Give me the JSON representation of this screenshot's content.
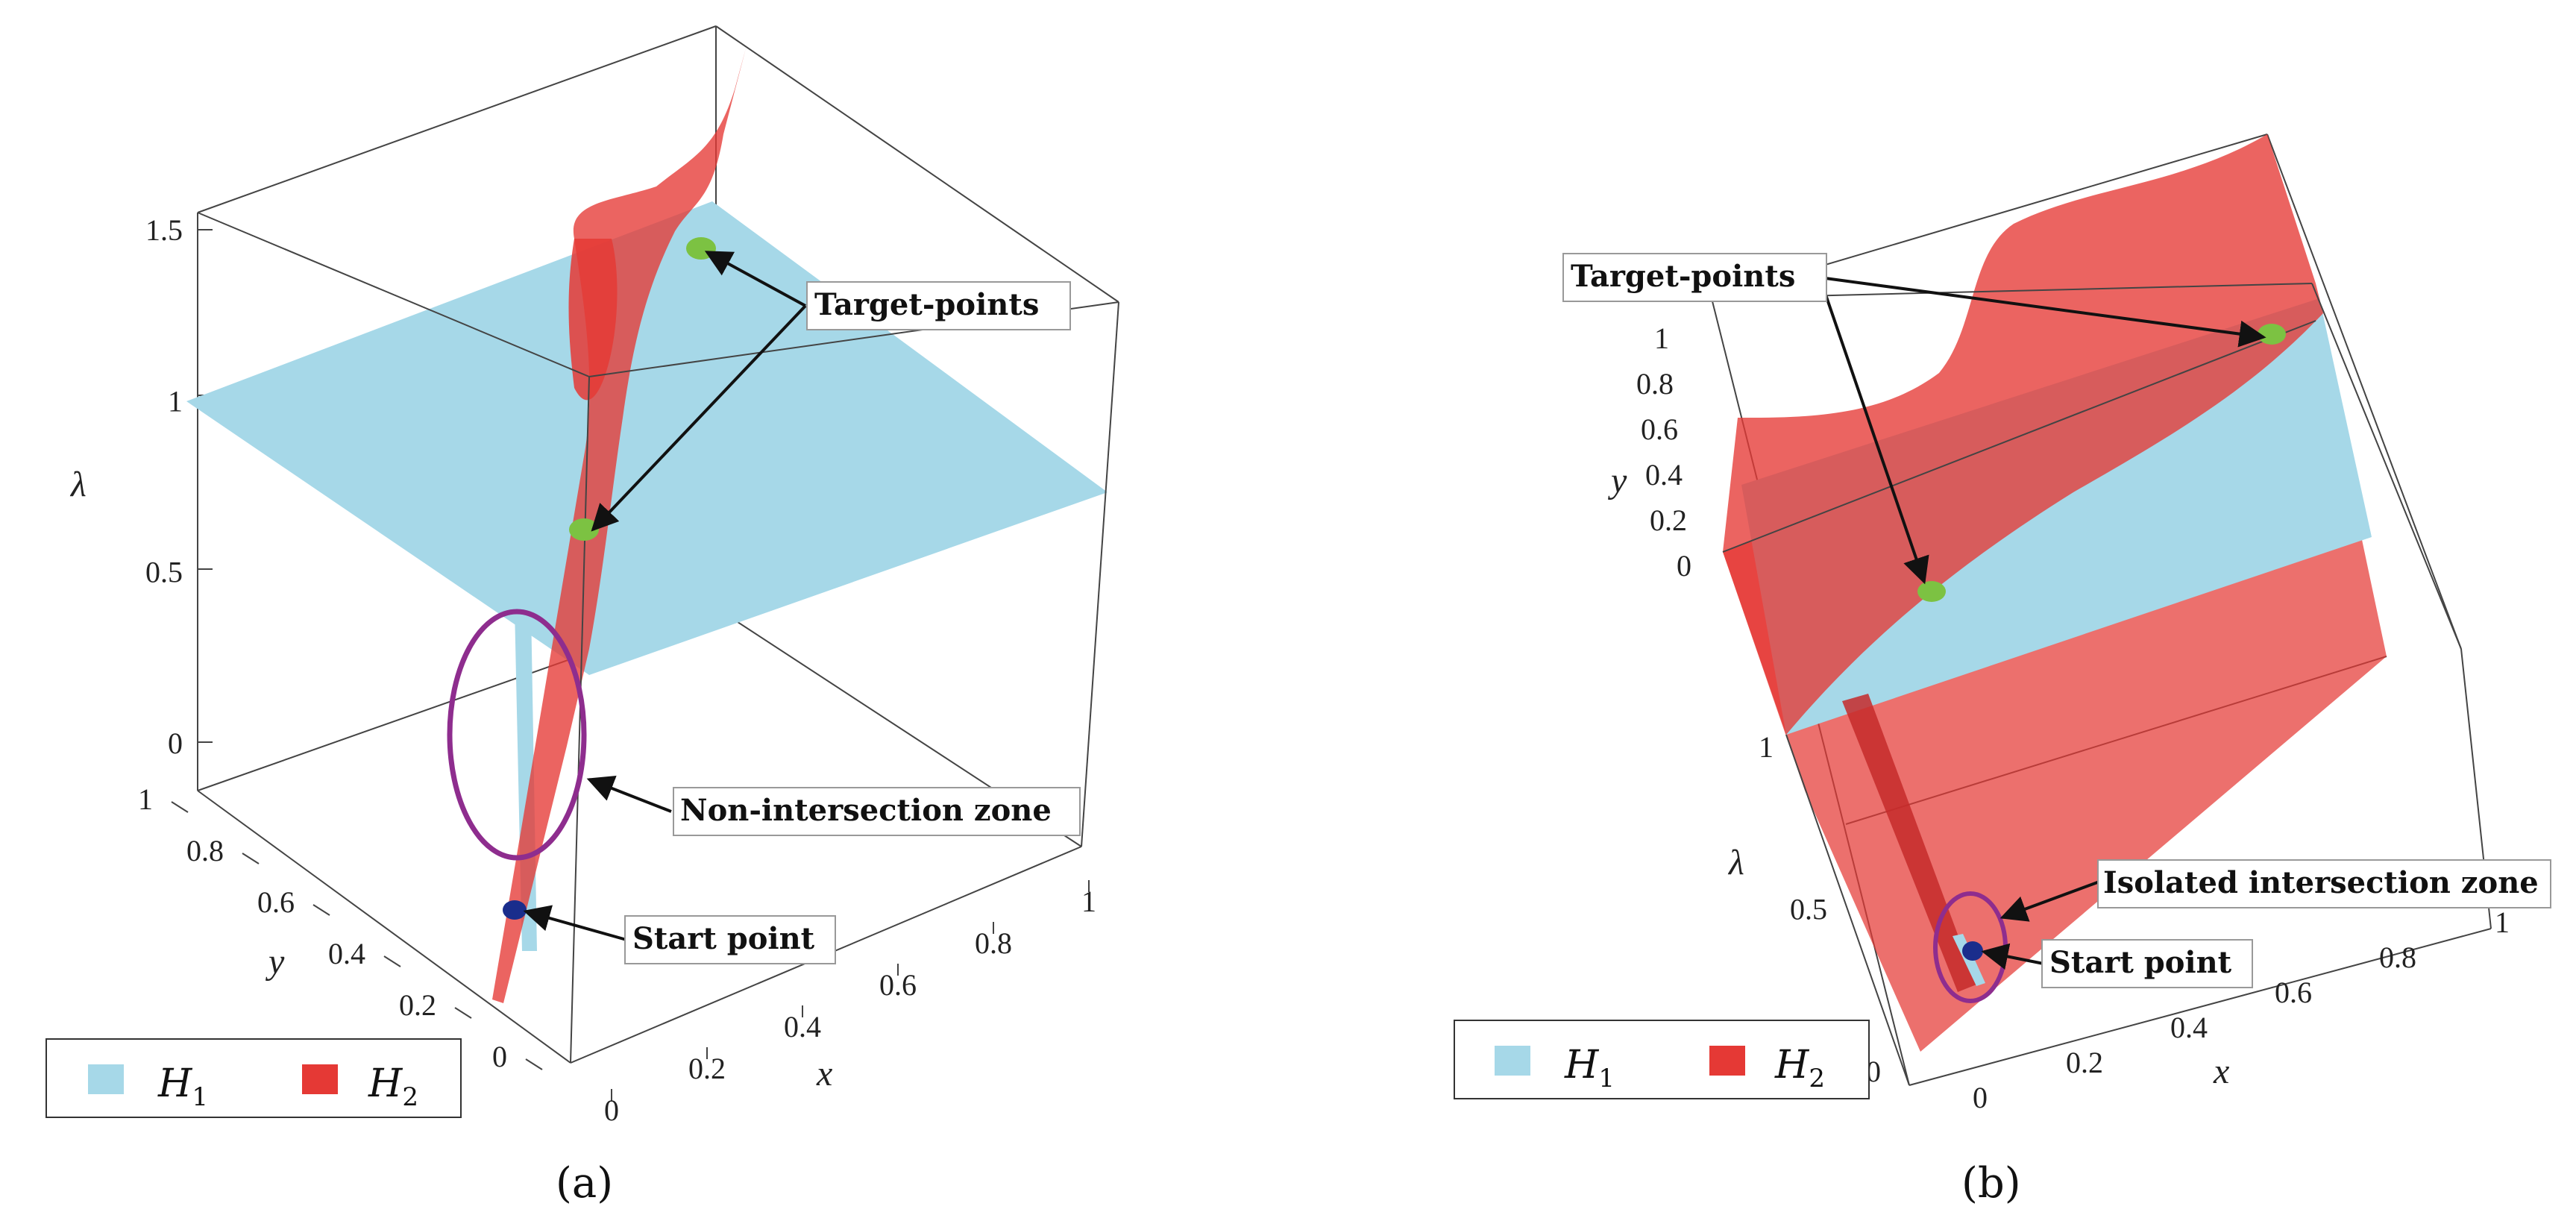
{
  "colors": {
    "h1": "#a6d8e8",
    "h2": "#e53935",
    "target": "#7cc242",
    "start": "#1a2d8c",
    "zone": "#8e2d8e"
  },
  "chart_data": [
    {
      "panel": "(a)",
      "type": "surface3d",
      "caption": "(a)",
      "xlabel": "x",
      "ylabel": "y",
      "zlabel": "λ",
      "xticks": [
        "0",
        "0.2",
        "0.4",
        "0.6",
        "0.8",
        "1"
      ],
      "yticks": [
        "0",
        "0.2",
        "0.4",
        "0.6",
        "0.8",
        "1"
      ],
      "zticks": [
        "0",
        "0.5",
        "1",
        "1.5"
      ],
      "xlim": [
        0,
        1
      ],
      "ylim": [
        0,
        1
      ],
      "zlim": [
        0,
        1.5
      ],
      "series": [
        {
          "name": "H",
          "sub": "1"
        },
        {
          "name": "H",
          "sub": "2"
        }
      ],
      "annotations": {
        "target": "Target-points",
        "zone": "Non-intersection zone",
        "start": "Start point"
      }
    },
    {
      "panel": "(b)",
      "type": "surface3d",
      "caption": "(b)",
      "xlabel": "x",
      "ylabel": "y",
      "zlabel": "λ",
      "xticks": [
        "0",
        "0.2",
        "0.4",
        "0.6",
        "0.8",
        "1"
      ],
      "yticks": [
        "0",
        "0.2",
        "0.4",
        "0.6",
        "0.8",
        "1"
      ],
      "zticks": [
        "0",
        "0.5",
        "1"
      ],
      "xlim": [
        0,
        1
      ],
      "ylim": [
        0,
        1
      ],
      "zlim": [
        0,
        1
      ],
      "series": [
        {
          "name": "H",
          "sub": "1"
        },
        {
          "name": "H",
          "sub": "2"
        }
      ],
      "annotations": {
        "target": "Target-points",
        "zone": "Isolated intersection zone",
        "start": "Start point"
      }
    }
  ]
}
